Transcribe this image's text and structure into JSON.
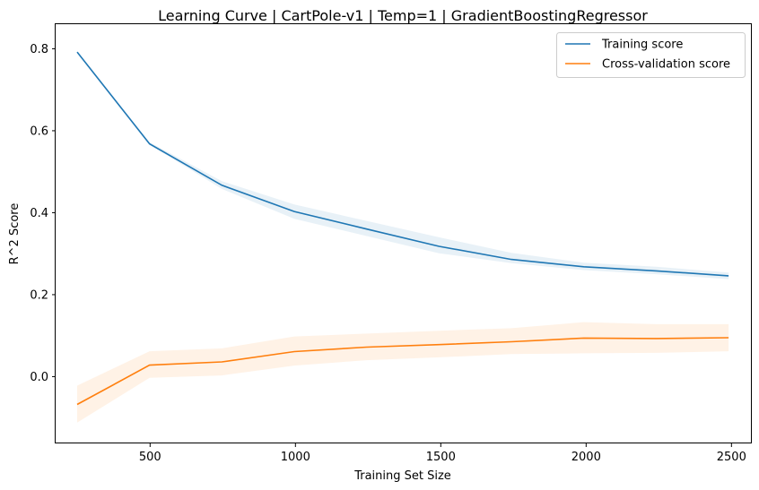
{
  "chart_data": {
    "type": "line",
    "title": "Learning Curve | CartPole-v1 | Temp=1 | GradientBoostingRegressor",
    "xlabel": "Training Set Size",
    "ylabel": "R^2 Score",
    "xlim": [
      175,
      2570
    ],
    "ylim": [
      -0.163,
      0.86
    ],
    "xticks": [
      500,
      1000,
      1500,
      2000,
      2500
    ],
    "yticks": [
      0.0,
      0.2,
      0.4,
      0.6,
      0.8
    ],
    "x": [
      249,
      498,
      747,
      996,
      1245,
      1494,
      1743,
      1992,
      2241,
      2490
    ],
    "legend_position": "top-right",
    "series": [
      {
        "name": "Training score",
        "color": "#1f77b4",
        "values": [
          0.792,
          0.568,
          0.467,
          0.403,
          0.36,
          0.318,
          0.286,
          0.268,
          0.258,
          0.246
        ],
        "band_low": [
          0.792,
          0.566,
          0.458,
          0.385,
          0.343,
          0.301,
          0.277,
          0.26,
          0.25,
          0.238
        ],
        "band_high": [
          0.792,
          0.572,
          0.477,
          0.42,
          0.38,
          0.34,
          0.302,
          0.278,
          0.268,
          0.254
        ]
      },
      {
        "name": "Cross-validation score",
        "color": "#ff7f0e",
        "values": [
          -0.068,
          0.028,
          0.036,
          0.061,
          0.072,
          0.078,
          0.085,
          0.094,
          0.093,
          0.095
        ],
        "band_low": [
          -0.112,
          -0.003,
          0.003,
          0.027,
          0.04,
          0.047,
          0.055,
          0.057,
          0.058,
          0.062
        ],
        "band_high": [
          -0.022,
          0.062,
          0.069,
          0.098,
          0.105,
          0.112,
          0.118,
          0.133,
          0.128,
          0.128
        ]
      }
    ]
  }
}
